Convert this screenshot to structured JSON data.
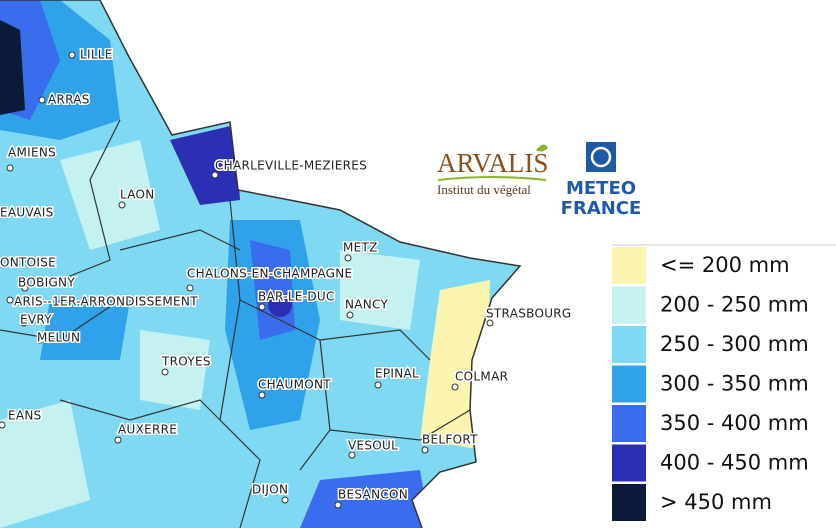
{
  "cities": [
    "LILLE",
    "ARRAS",
    "AMIENS",
    "CHARLEVILLE-MEZIERES",
    "LAON",
    "EAUVAIS",
    "METZ",
    "ONTOISE",
    "BOBIGNY",
    "ARIS--1ER-ARRONDISSEMENT",
    "CHALONS-EN-CHAMPAGNE",
    "BAR-LE-DUC",
    "NANCY",
    "STRASBOURG",
    "EVRY",
    "MELUN",
    "TROYES",
    "CHAUMONT",
    "EPINAL",
    "COLMAR",
    "EANS",
    "AUXERRE",
    "VESOUL",
    "BELFORT",
    "DIJON",
    "BESANCON"
  ],
  "logos": {
    "arvalis": "ARVALIS",
    "arvalis_sub": "Institut du végétal",
    "meteo_1": "METEO",
    "meteo_2": "FRANCE"
  },
  "legend": [
    {
      "label": "<= 200 mm",
      "color": "#fbf5b0"
    },
    {
      "label": "200 - 250 mm",
      "color": "#c6f1f1"
    },
    {
      "label": "250 - 300 mm",
      "color": "#80d9f3"
    },
    {
      "label": "300 - 350 mm",
      "color": "#2fa2ea"
    },
    {
      "label": "350 - 400 mm",
      "color": "#3a6cee"
    },
    {
      "label": "400 - 450 mm",
      "color": "#2b2fb4"
    },
    {
      "label": "> 450 mm",
      "color": "#0b1a38"
    }
  ]
}
